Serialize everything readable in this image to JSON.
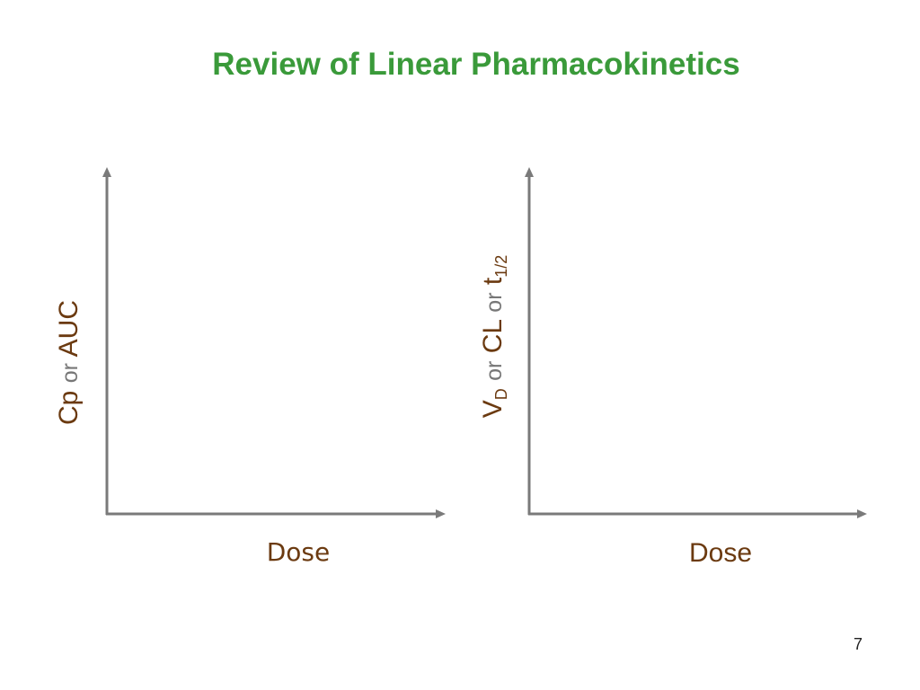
{
  "slide": {
    "title": "Review of Linear Pharmacokinetics",
    "page_number": "7"
  },
  "colors": {
    "title": "#3a9a3a",
    "axis_label": "#6b3a10",
    "connector_text": "#777777",
    "axis_line": "#7a7a7a",
    "page_number": "#222222"
  },
  "diagram": {
    "left_plot": {
      "ylabel": {
        "part1": "Cp",
        "connector": "or",
        "part2": "AUC"
      },
      "xlabel": "Dose"
    },
    "right_plot": {
      "ylabel": {
        "part1_main": "V",
        "part1_sub": "D",
        "connector1": "or",
        "part2": "CL",
        "connector2": "or",
        "part3_main": "t",
        "part3_sub": "1/2"
      },
      "xlabel": "Dose"
    }
  }
}
